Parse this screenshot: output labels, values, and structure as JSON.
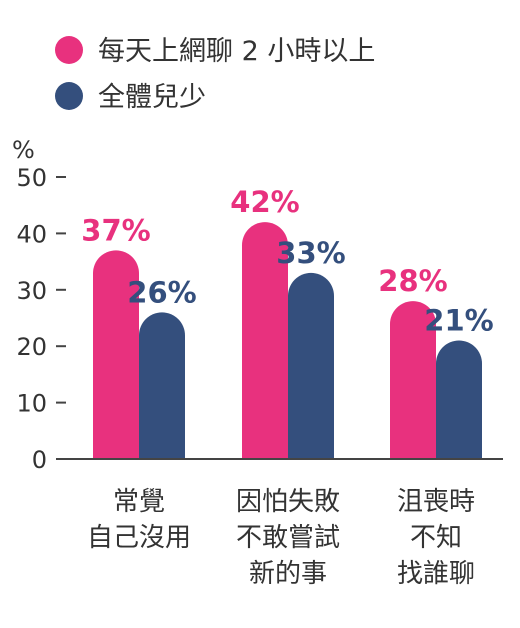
{
  "legend": [
    {
      "label": "每天上網聊 2 小時以上",
      "color": "#e8317e"
    },
    {
      "label": "全體兒少",
      "color": "#344f7d"
    }
  ],
  "chart_data": {
    "type": "bar",
    "y_unit": "%",
    "ylim": [
      0,
      50
    ],
    "yticks": [
      0,
      10,
      20,
      30,
      40,
      50
    ],
    "categories": [
      [
        "常覺",
        "自己沒用"
      ],
      [
        "因怕失敗",
        "不敢嘗試",
        "新的事"
      ],
      [
        "沮喪時",
        "不知",
        "找誰聊"
      ]
    ],
    "series": [
      {
        "name": "每天上網聊 2 小時以上",
        "values": [
          37,
          42,
          28
        ],
        "labels": [
          "37%",
          "42%",
          "28%"
        ],
        "color": "#e8317e"
      },
      {
        "name": "全體兒少",
        "values": [
          26,
          33,
          21
        ],
        "labels": [
          "26%",
          "33%",
          "21%"
        ],
        "color": "#344f7d"
      }
    ],
    "grid": false,
    "legend_position": "top-left"
  }
}
